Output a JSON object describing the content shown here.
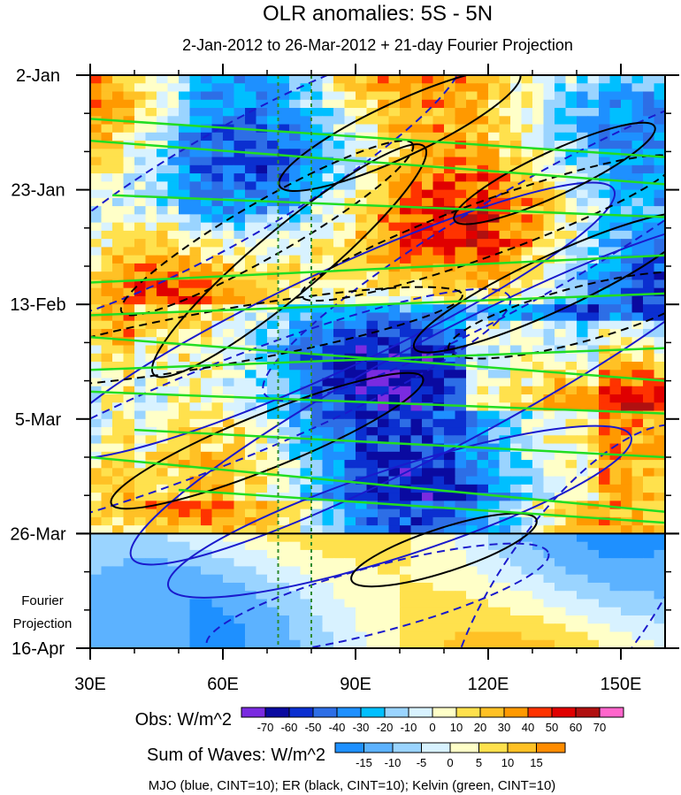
{
  "chart_data": {
    "type": "heatmap",
    "title": "OLR anomalies: 5S - 5N",
    "subtitle": "2-Jan-2012 to 26-Mar-2012 + 21-day Fourier Projection",
    "x_axis": {
      "unit": "degrees east longitude",
      "range": [
        30,
        160
      ],
      "tick_values": [
        30,
        60,
        90,
        120,
        150
      ],
      "tick_labels": [
        "30E",
        "60E",
        "90E",
        "120E",
        "150E"
      ]
    },
    "y_axis": {
      "unit": "days since 2-Jan-2012",
      "range": [
        0,
        105
      ],
      "reversed": true,
      "tick_values": [
        0,
        21,
        42,
        63,
        84,
        105
      ],
      "tick_labels": [
        "2-Jan",
        "23-Jan",
        "13-Feb",
        "5-Mar",
        "26-Mar",
        "16-Apr"
      ]
    },
    "observation_end_day": 84,
    "projection_label": [
      "Fourier",
      "Projection"
    ],
    "vertical_reference_lines_lon": [
      72.5,
      80
    ],
    "reference_line_color": "#2e8b2e",
    "obs_colorbar": {
      "label": "Obs: W/m^2",
      "levels": [
        "-70",
        "-60",
        "-50",
        "-40",
        "-30",
        "-20",
        "-10",
        "0",
        "10",
        "20",
        "30",
        "40",
        "50",
        "60",
        "70"
      ],
      "colors": [
        "#7a2be0",
        "#0a0aa0",
        "#0b2fd0",
        "#2d6ee6",
        "#1e90ff",
        "#00bfff",
        "#9ad4ff",
        "#d8f2ff",
        "#ffffc8",
        "#ffe14d",
        "#ffc125",
        "#ff9900",
        "#ff3300",
        "#e00000",
        "#b01010",
        "#ff66cc"
      ]
    },
    "waves_colorbar": {
      "label": "Sum of Waves: W/m^2",
      "levels": [
        "-15",
        "-10",
        "-5",
        "0",
        "5",
        "10",
        "15"
      ],
      "colors": [
        "#1e90ff",
        "#5cb2ff",
        "#9ad4ff",
        "#d8f2ff",
        "#ffffc8",
        "#ffe14d",
        "#ffc125",
        "#ff8c00"
      ]
    },
    "contour_legend": "MJO (blue, CINT=10); ER (black, CINT=10); Kelvin (green, CINT=10)",
    "series": [
      {
        "name": "MJO",
        "color": "#1a1acc",
        "contour_interval": 10
      },
      {
        "name": "ER",
        "color": "#000000",
        "contour_interval": 10
      },
      {
        "name": "Kelvin",
        "color": "#22dd22",
        "contour_interval": 10
      }
    ]
  }
}
